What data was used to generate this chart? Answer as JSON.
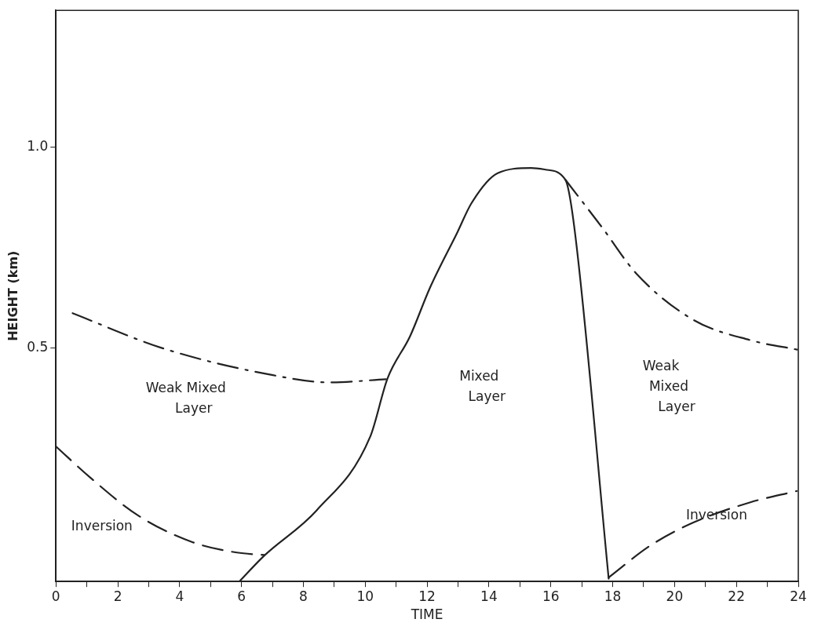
{
  "chart_data": {
    "type": "line",
    "xlabel": "TIME",
    "ylabel": "HEIGHT (km)",
    "xlim": [
      0,
      24
    ],
    "ylim": [
      -0.08,
      1.34
    ],
    "xticks": [
      0,
      {
        "value": 1,
        "label": null
      },
      2,
      {
        "value": 3,
        "label": null
      },
      4,
      {
        "value": 5,
        "label": null
      },
      6,
      {
        "value": 7,
        "label": null
      },
      8,
      {
        "value": 9,
        "label": null
      },
      10,
      {
        "value": 11,
        "label": null
      },
      12,
      {
        "value": 13,
        "label": null
      },
      14,
      {
        "value": 15,
        "label": null
      },
      16,
      {
        "value": 17,
        "label": null
      },
      18,
      {
        "value": 19,
        "label": null
      },
      20,
      {
        "value": 21,
        "label": null
      },
      22,
      {
        "value": 23,
        "label": null
      },
      24
    ],
    "yticks": [
      0.5,
      {
        "value": 1,
        "label": "1.0"
      }
    ],
    "grid": false,
    "legend": false,
    "marker": "none",
    "series": [
      {
        "color": "#222222",
        "line_style": "solid",
        "x": [
          5.93,
          6.73,
          8.43,
          10.16,
          10.72,
          11.45,
          12.09,
          12.99,
          13.43,
          14.28,
          15.36,
          15.83,
          16.47,
          16.76,
          17.87
        ],
        "values": [
          -0.08,
          -0.016,
          0.097,
          0.28,
          0.425,
          0.53,
          0.65,
          0.79,
          0.86,
          0.935,
          0.948,
          0.944,
          0.919,
          0.8,
          -0.073
        ]
      },
      {
        "color": "#222222",
        "line_style": "dashdot",
        "x": [
          0.54,
          3.45,
          6.88,
          8.87,
          10.67
        ],
        "values": [
          0.587,
          0.5,
          0.435,
          0.415,
          0.423
        ]
      },
      {
        "color": "#222222",
        "line_style": "dashdot",
        "x": [
          16.47,
          17.66,
          18.77,
          20.62,
          22.45,
          24
        ],
        "values": [
          0.919,
          0.8,
          0.685,
          0.57,
          0.52,
          0.496
        ]
      },
      {
        "color": "#222222",
        "line_style": "dashed",
        "x": [
          0,
          1.13,
          2.68,
          4.41,
          5.85,
          6.73
        ],
        "values": [
          0.256,
          0.177,
          0.083,
          0.018,
          -0.008,
          -0.014
        ]
      },
      {
        "color": "#222222",
        "line_style": "dashed",
        "x": [
          17.87,
          19.23,
          20.62,
          22.45,
          23.95
        ],
        "values": [
          -0.07,
          0.01,
          0.067,
          0.117,
          0.145
        ]
      }
    ],
    "annotations": [
      "Weak Mixed\nLayer",
      "Inversion",
      "Mixed\nLayer",
      "Weak\nMixed\nLayer",
      "Inversion"
    ]
  }
}
